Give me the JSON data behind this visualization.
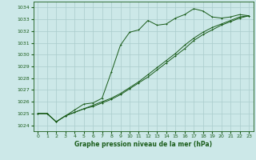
{
  "title": "Graphe pression niveau de la mer (hPa)",
  "bg_color": "#cce8e8",
  "grid_color": "#aacccc",
  "line_color": "#1a5c1a",
  "ylim": [
    1023.5,
    1034.5
  ],
  "xlim": [
    -0.5,
    23.5
  ],
  "yticks": [
    1024,
    1025,
    1026,
    1027,
    1028,
    1029,
    1030,
    1031,
    1032,
    1033,
    1034
  ],
  "xticks": [
    0,
    1,
    2,
    3,
    4,
    5,
    6,
    7,
    8,
    9,
    10,
    11,
    12,
    13,
    14,
    15,
    16,
    17,
    18,
    19,
    20,
    21,
    22,
    23
  ],
  "line1_x": [
    0,
    1,
    2,
    3,
    4,
    5,
    6,
    7,
    8,
    9,
    10,
    11,
    12,
    13,
    14,
    15,
    16,
    17,
    18,
    19,
    20,
    21,
    22,
    23
  ],
  "line1_y": [
    1025.0,
    1025.0,
    1024.3,
    1024.8,
    1025.3,
    1025.8,
    1025.9,
    1026.3,
    1028.5,
    1030.8,
    1031.9,
    1032.1,
    1032.9,
    1032.5,
    1032.6,
    1033.1,
    1033.4,
    1033.9,
    1033.7,
    1033.2,
    1033.1,
    1033.2,
    1033.4,
    1033.3
  ],
  "line2_x": [
    0,
    1,
    2,
    3,
    4,
    5,
    6,
    7,
    8,
    9,
    10,
    11,
    12,
    13,
    14,
    15,
    16,
    17,
    18,
    19,
    20,
    21,
    22,
    23
  ],
  "line2_y": [
    1025.0,
    1025.0,
    1024.3,
    1024.8,
    1025.1,
    1025.4,
    1025.7,
    1026.0,
    1026.3,
    1026.7,
    1027.2,
    1027.7,
    1028.3,
    1028.9,
    1029.5,
    1030.1,
    1030.8,
    1031.4,
    1031.9,
    1032.3,
    1032.6,
    1032.9,
    1033.2,
    1033.3
  ],
  "line3_x": [
    0,
    1,
    2,
    3,
    4,
    5,
    6,
    7,
    8,
    9,
    10,
    11,
    12,
    13,
    14,
    15,
    16,
    17,
    18,
    19,
    20,
    21,
    22,
    23
  ],
  "line3_y": [
    1025.0,
    1025.0,
    1024.3,
    1024.8,
    1025.1,
    1025.4,
    1025.6,
    1025.9,
    1026.2,
    1026.6,
    1027.1,
    1027.6,
    1028.1,
    1028.7,
    1029.3,
    1029.9,
    1030.5,
    1031.2,
    1031.7,
    1032.1,
    1032.5,
    1032.8,
    1033.1,
    1033.3
  ]
}
